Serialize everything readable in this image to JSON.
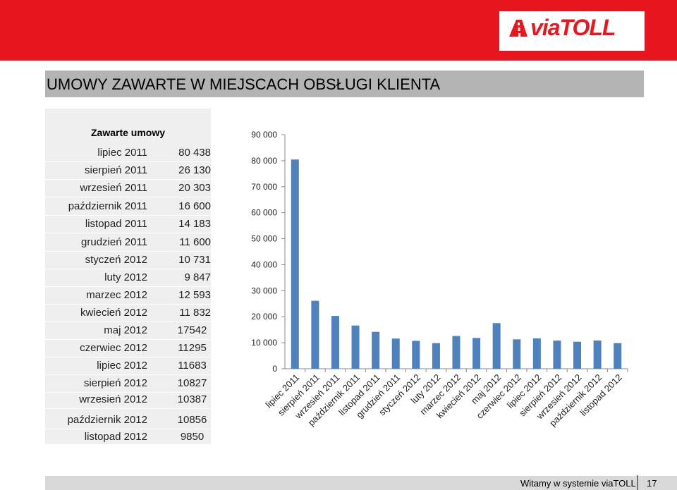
{
  "header": {
    "logo_text": "viaTOLL",
    "title": "UMOWY ZAWARTE W MIEJSCACH OBSŁUGI KLIENTA"
  },
  "table": {
    "header": "Zawarte umowy",
    "rows": [
      {
        "month": "lipiec 2011",
        "value": "80 438"
      },
      {
        "month": "sierpień 2011",
        "value": "26 130"
      },
      {
        "month": "wrzesień 2011",
        "value": "20 303"
      },
      {
        "month": "październik 2011",
        "value": "16 600"
      },
      {
        "month": "listopad 2011",
        "value": "14 183"
      },
      {
        "month": "grudzień 2011",
        "value": "11 600"
      },
      {
        "month": "styczeń 2012",
        "value": "10 731"
      },
      {
        "month": "luty 2012",
        "value": "9 847"
      },
      {
        "month": "marzec 2012",
        "value": "12 593"
      },
      {
        "month": "kwiecień 2012",
        "value": "11 832"
      },
      {
        "month": "maj 2012",
        "value": "17542"
      },
      {
        "month": "czerwiec 2012",
        "value": "11295"
      },
      {
        "month": "lipiec 2012",
        "value": "11683"
      },
      {
        "month": "sierpień 2012",
        "value": "10827"
      },
      {
        "month": "wrzesień 2012",
        "value": "10387"
      },
      {
        "month": "październik 2012",
        "value": "10856"
      },
      {
        "month": "listopad 2012",
        "value": "9850"
      }
    ]
  },
  "chart_data": {
    "type": "bar",
    "categories": [
      "lipiec 2011",
      "sierpień 2011",
      "wrzesień 2011",
      "październik 2011",
      "listopad 2011",
      "grudzień 2011",
      "styczeń 2012",
      "luty 2012",
      "marzec 2012",
      "kwiecień 2012",
      "maj 2012",
      "czerwiec 2012",
      "lipiec 2012",
      "sierpień 2012",
      "wrzesień 2012",
      "październik 2012",
      "listopad 2012"
    ],
    "values": [
      80438,
      26130,
      20303,
      16600,
      14183,
      11600,
      10731,
      9847,
      12593,
      11832,
      17542,
      11295,
      11683,
      10827,
      10387,
      10856,
      9850
    ],
    "ylim": [
      0,
      90000
    ],
    "yticks": [
      0,
      10000,
      20000,
      30000,
      40000,
      50000,
      60000,
      70000,
      80000,
      90000
    ],
    "ytick_labels": [
      "0",
      "10 000",
      "20 000",
      "30 000",
      "40 000",
      "50 000",
      "60 000",
      "70 000",
      "80 000",
      "90 000"
    ],
    "bar_color": "#4f81bd",
    "grid": false,
    "legend": "none"
  },
  "footer": {
    "text": "Witamy w systemie viaTOLL",
    "page": "17"
  }
}
